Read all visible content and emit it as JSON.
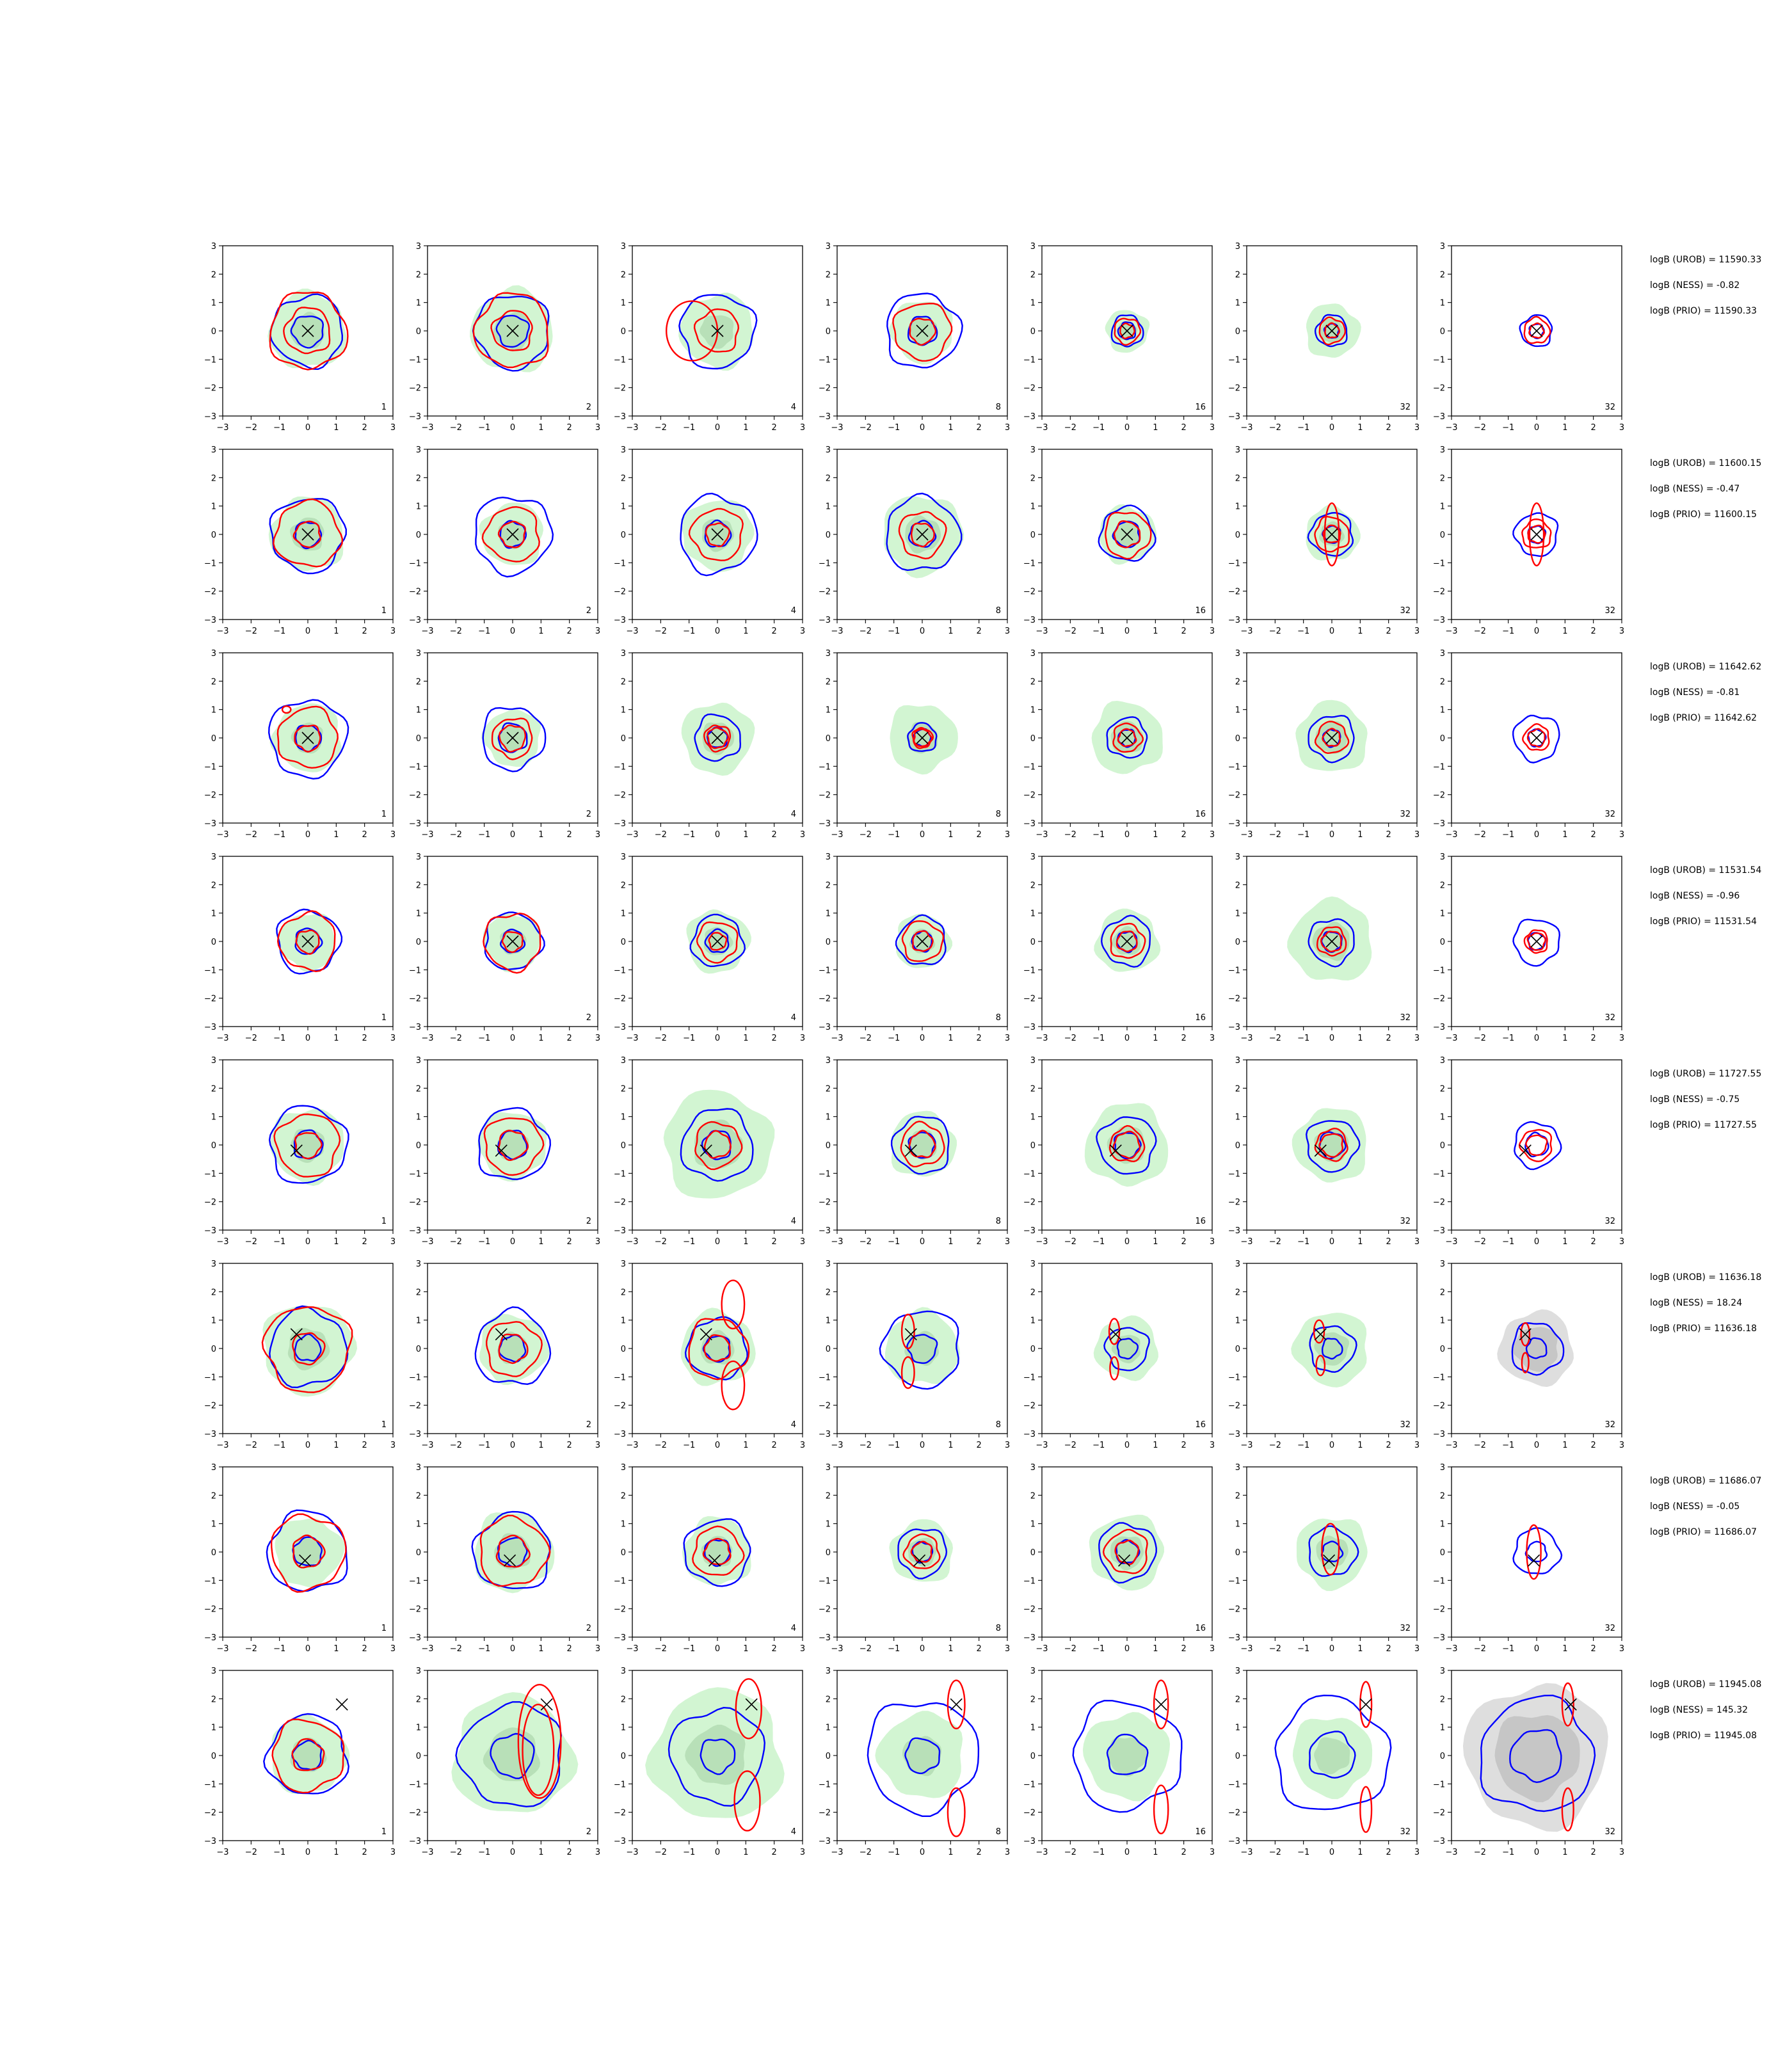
{
  "figure": {
    "colors": {
      "fill": "#d2f5d2",
      "fill_dark": "#b8e0b8",
      "gray": "#dedede",
      "gray_dark": "#c6c6c6",
      "blue": "#0000ff",
      "red": "#ff0000",
      "axis": "#000000"
    }
  },
  "chart_data": {
    "type": "contour-grid",
    "rows": 8,
    "cols": 7,
    "xlim": [
      -3,
      3
    ],
    "ylim": [
      -3,
      3
    ],
    "ticks": [
      "−3",
      "−2",
      "−1",
      "0",
      "1",
      "2",
      "3"
    ],
    "tick_values": [
      -3,
      -2,
      -1,
      0,
      1,
      2,
      3
    ],
    "column_counts": [
      "1",
      "2",
      "4",
      "8",
      "16",
      "32",
      "32"
    ],
    "panels_per_row": [
      {
        "marker": [
          0,
          0
        ],
        "annotations": [
          "logB (UROB) = 11590.33",
          "logB (NESS) = -0.82",
          "logB (PRIO) = 11590.33"
        ],
        "cells": [
          {
            "fill": 1.35,
            "blue": [
              1.25,
              0.55
            ],
            "red": [
              1.35,
              0.8
            ],
            "redExtra": []
          },
          {
            "fill": 1.45,
            "blue": [
              1.3,
              0.55
            ],
            "red": [
              1.3,
              0.7
            ],
            "redExtra": []
          },
          {
            "fill": 1.3,
            "blue": [
              1.3
            ],
            "red": [
              0.75
            ],
            "redExtra": [
              {
                "cx": -0.9,
                "cy": 0,
                "rx": 0.9,
                "ry": 1.05
              }
            ]
          },
          {
            "fill": 1.1,
            "blue": [
              1.3,
              0.5
            ],
            "red": [
              1.0,
              0.45
            ],
            "redExtra": []
          },
          {
            "fill": 0.75,
            "blue": [
              0.55,
              0.3
            ],
            "red": [
              0.45,
              0.25
            ],
            "redExtra": []
          },
          {
            "fill": 0.95,
            "blue": [
              0.55,
              0.25
            ],
            "red": [
              0.45,
              0.25
            ],
            "redExtra": []
          },
          {
            "fill": 0.0,
            "blue": [
              0.55,
              0.25
            ],
            "red": [
              0.45,
              0.25
            ],
            "redExtra": []
          }
        ]
      },
      {
        "marker": [
          0,
          0
        ],
        "annotations": [
          "logB (UROB) = 11600.15",
          "logB (NESS) = -0.47",
          "logB (PRIO) = 11600.15"
        ],
        "cells": [
          {
            "fill": 1.3,
            "blue": [
              1.3,
              0.45
            ],
            "red": [
              1.15,
              0.45
            ],
            "redExtra": []
          },
          {
            "fill": 1.1,
            "blue": [
              1.35,
              0.45
            ],
            "red": [
              0.95,
              0.45
            ],
            "redExtra": []
          },
          {
            "fill": 1.25,
            "blue": [
              1.35,
              0.45
            ],
            "red": [
              0.9,
              0.4
            ],
            "redExtra": []
          },
          {
            "fill": 1.4,
            "blue": [
              1.3,
              0.45
            ],
            "red": [
              0.8,
              0.4
            ],
            "redExtra": []
          },
          {
            "fill": 1.0,
            "blue": [
              0.95,
              0.45
            ],
            "red": [
              0.8,
              0.45
            ],
            "redExtra": []
          },
          {
            "fill": 0.95,
            "blue": [
              0.75,
              0.3
            ],
            "red": [
              0.6,
              0.3
            ],
            "redExtra": [
              {
                "cx": 0,
                "cy": 0,
                "rx": 0.25,
                "ry": 1.1
              }
            ]
          },
          {
            "fill": 0.0,
            "blue": [
              0.75,
              0.3
            ],
            "red": [
              0.5,
              0.3
            ],
            "redExtra": [
              {
                "cx": 0,
                "cy": 0,
                "rx": 0.25,
                "ry": 1.1
              }
            ]
          }
        ]
      },
      {
        "marker": [
          0,
          0
        ],
        "annotations": [
          "logB (UROB) = 11642.62",
          "logB (NESS) = -0.81",
          "logB (PRIO) = 11642.62"
        ],
        "cells": [
          {
            "fill": 1.2,
            "blue": [
              1.35,
              0.45
            ],
            "red": [
              1.05,
              0.45
            ],
            "redExtra": [
              {
                "cx": -0.75,
                "cy": 1.0,
                "rx": 0.15,
                "ry": 0.12
              }
            ]
          },
          {
            "fill": 1.0,
            "blue": [
              1.1,
              0.5
            ],
            "red": [
              0.7,
              0.45
            ],
            "redExtra": []
          },
          {
            "fill": 1.25,
            "blue": [
              0.8,
              0.35
            ],
            "red": [
              0.45,
              0.35
            ],
            "redExtra": []
          },
          {
            "fill": 1.2,
            "blue": [
              0.5,
              0.3
            ],
            "red": [
              0.35,
              0.3
            ],
            "redExtra": []
          },
          {
            "fill": 1.25,
            "blue": [
              0.7,
              0.3
            ],
            "red": [
              0.5,
              0.3
            ],
            "redExtra": []
          },
          {
            "fill": 1.25,
            "blue": [
              0.8,
              0.3
            ],
            "red": [
              0.55,
              0.3
            ],
            "redExtra": []
          },
          {
            "fill": 0.0,
            "blue": [
              0.8,
              0.3
            ],
            "red": [
              0.45,
              0.3
            ],
            "redExtra": []
          }
        ]
      },
      {
        "marker": [
          0,
          0
        ],
        "annotations": [
          "logB (UROB) = 11531.54",
          "logB (NESS) = -0.96",
          "logB (PRIO) = 11531.54"
        ],
        "cells": [
          {
            "fill": 1.0,
            "blue": [
              1.1,
              0.45
            ],
            "red": [
              1.0,
              0.4
            ],
            "redExtra": []
          },
          {
            "fill": 1.0,
            "blue": [
              1.0,
              0.4
            ],
            "red": [
              1.0,
              0.35
            ],
            "redExtra": []
          },
          {
            "fill": 1.1,
            "blue": [
              0.9,
              0.4
            ],
            "red": [
              0.7,
              0.3
            ],
            "redExtra": []
          },
          {
            "fill": 0.95,
            "blue": [
              0.85,
              0.35
            ],
            "red": [
              0.7,
              0.35
            ],
            "redExtra": []
          },
          {
            "fill": 1.1,
            "blue": [
              0.85,
              0.35
            ],
            "red": [
              0.6,
              0.35
            ],
            "redExtra": []
          },
          {
            "fill": 1.45,
            "blue": [
              0.8,
              0.35
            ],
            "red": [
              0.5,
              0.35
            ],
            "redExtra": []
          },
          {
            "fill": 0.0,
            "blue": [
              0.8,
              0.3
            ],
            "red": [
              0.4,
              0.3
            ],
            "redExtra": []
          }
        ]
      },
      {
        "marker": [
          -0.4,
          -0.2
        ],
        "annotations": [
          "logB (UROB) = 11727.55",
          "logB (NESS) = -0.75",
          "logB (PRIO) = 11727.55"
        ],
        "cells": [
          {
            "fill": 1.3,
            "blue": [
              1.35,
              0.5
            ],
            "red": [
              1.1,
              0.45
            ],
            "redExtra": []
          },
          {
            "fill": 1.2,
            "blue": [
              1.25,
              0.5
            ],
            "red": [
              1.0,
              0.5
            ],
            "redExtra": []
          },
          {
            "fill": 1.9,
            "blue": [
              1.25,
              0.5
            ],
            "red": [
              0.8,
              0.45
            ],
            "redExtra": []
          },
          {
            "fill": 1.15,
            "blue": [
              1.0,
              0.45
            ],
            "red": [
              0.75,
              0.45
            ],
            "redExtra": []
          },
          {
            "fill": 1.45,
            "blue": [
              1.0,
              0.45
            ],
            "red": [
              0.6,
              0.45
            ],
            "redExtra": []
          },
          {
            "fill": 1.3,
            "blue": [
              0.9,
              0.45
            ],
            "red": [
              0.55,
              0.4
            ],
            "redExtra": []
          },
          {
            "fill": 0.0,
            "blue": [
              0.8,
              0.4
            ],
            "red": [
              0.55,
              0.35
            ],
            "redExtra": []
          }
        ]
      },
      {
        "marker": [
          -0.4,
          0.5
        ],
        "annotations": [
          "logB (UROB) = 11636.18",
          "logB (NESS) = 18.24",
          "logB (PRIO) = 11636.18"
        ],
        "cells": [
          {
            "fill": 1.6,
            "blue": [
              1.35,
              0.45
            ],
            "red": [
              1.5,
              0.55
            ],
            "redExtra": []
          },
          {
            "fill": 1.2,
            "blue": [
              1.3,
              0.45
            ],
            "red": [
              0.95,
              0.5
            ],
            "redExtra": []
          },
          {
            "fill": 1.3,
            "blue": [
              1.05,
              0.45
            ],
            "red": [
              1.05,
              0.45
            ],
            "redExtra": [
              {
                "cx": 0.55,
                "cy": 1.55,
                "rx": 0.4,
                "ry": 0.85
              },
              {
                "cx": 0.55,
                "cy": -1.3,
                "rx": 0.4,
                "ry": 0.85
              }
            ]
          },
          {
            "fill": 1.3,
            "blue": [
              1.35,
              0.5
            ],
            "red": [],
            "redExtra": [
              {
                "cx": -0.5,
                "cy": 0.6,
                "rx": 0.22,
                "ry": 0.6
              },
              {
                "cx": -0.5,
                "cy": -0.85,
                "rx": 0.22,
                "ry": 0.55
              }
            ]
          },
          {
            "fill": 1.1,
            "blue": [
              0.75,
              0.35
            ],
            "red": [],
            "redExtra": [
              {
                "cx": -0.45,
                "cy": 0.6,
                "rx": 0.18,
                "ry": 0.45
              },
              {
                "cx": -0.45,
                "cy": -0.7,
                "rx": 0.15,
                "ry": 0.4
              }
            ]
          },
          {
            "fill": 1.3,
            "blue": [
              0.8,
              0.35
            ],
            "red": [],
            "redExtra": [
              {
                "cx": -0.45,
                "cy": 0.6,
                "rx": 0.18,
                "ry": 0.4
              },
              {
                "cx": -0.4,
                "cy": -0.6,
                "rx": 0.15,
                "ry": 0.35
              }
            ]
          },
          {
            "fill": 0.0,
            "gray": 1.3,
            "blue": [
              0.9,
              0.35
            ],
            "red": [],
            "redExtra": [
              {
                "cx": -0.4,
                "cy": 0.5,
                "rx": 0.15,
                "ry": 0.4
              },
              {
                "cx": -0.4,
                "cy": -0.5,
                "rx": 0.12,
                "ry": 0.35
              }
            ]
          }
        ]
      },
      {
        "marker": [
          -0.1,
          -0.3
        ],
        "annotations": [
          "logB (UROB) = 11686.07",
          "logB (NESS) = -0.05",
          "logB (PRIO) = 11686.07"
        ],
        "cells": [
          {
            "fill": 1.2,
            "blue": [
              1.4,
              0.5
            ],
            "red": [
              1.3,
              0.55
            ],
            "redExtra": []
          },
          {
            "fill": 1.4,
            "blue": [
              1.35,
              0.5
            ],
            "red": [
              1.2,
              0.55
            ],
            "redExtra": []
          },
          {
            "fill": 1.2,
            "blue": [
              1.15,
              0.45
            ],
            "red": [
              0.85,
              0.45
            ],
            "redExtra": []
          },
          {
            "fill": 1.1,
            "blue": [
              0.85,
              0.35
            ],
            "red": [
              0.6,
              0.35
            ],
            "redExtra": []
          },
          {
            "fill": 1.3,
            "blue": [
              1.0,
              0.4
            ],
            "red": [
              0.75,
              0.4
            ],
            "redExtra": []
          },
          {
            "fill": 1.25,
            "blue": [
              0.85,
              0.35
            ],
            "red": [],
            "redExtra": [
              {
                "cx": -0.05,
                "cy": 0.1,
                "rx": 0.3,
                "ry": 0.9
              }
            ]
          },
          {
            "fill": 0.0,
            "blue": [
              0.8,
              0.35
            ],
            "red": [],
            "redExtra": [
              {
                "cx": -0.1,
                "cy": 0,
                "rx": 0.25,
                "ry": 0.95
              }
            ]
          }
        ]
      },
      {
        "marker": [
          1.2,
          1.8
        ],
        "annotations": [
          "logB (UROB) = 11945.08",
          "logB (NESS) = 145.32",
          "logB (PRIO) = 11945.08"
        ],
        "cells": [
          {
            "fill": 1.35,
            "blue": [
              1.4,
              0.5
            ],
            "red": [
              1.25,
              0.55
            ],
            "redExtra": []
          },
          {
            "fill": 2.1,
            "blue": [
              1.8,
              0.75
            ],
            "red": [],
            "redExtra": [
              {
                "cx": 0.95,
                "cy": 0.5,
                "rx": 0.75,
                "ry": 2.0
              },
              {
                "cx": 0.9,
                "cy": 0.2,
                "rx": 0.55,
                "ry": 1.6
              }
            ]
          },
          {
            "fill": 2.3,
            "blue": [
              1.65,
              0.6
            ],
            "red": [],
            "redExtra": [
              {
                "cx": 1.1,
                "cy": 1.65,
                "rx": 0.45,
                "ry": 1.05
              },
              {
                "cx": 1.05,
                "cy": -1.6,
                "rx": 0.45,
                "ry": 1.05
              }
            ]
          },
          {
            "fill": 1.5,
            "blue": [
              1.95,
              0.6
            ],
            "red": [],
            "redExtra": [
              {
                "cx": 1.2,
                "cy": 1.8,
                "rx": 0.3,
                "ry": 0.85
              },
              {
                "cx": 1.2,
                "cy": -2.0,
                "rx": 0.3,
                "ry": 0.85
              }
            ]
          },
          {
            "fill": 1.5,
            "blue": [
              1.9,
              0.7
            ],
            "red": [],
            "redExtra": [
              {
                "cx": 1.2,
                "cy": 1.8,
                "rx": 0.25,
                "ry": 0.85
              },
              {
                "cx": 1.2,
                "cy": -1.9,
                "rx": 0.25,
                "ry": 0.85
              }
            ]
          },
          {
            "fill": 1.4,
            "blue": [
              2.0,
              0.8
            ],
            "red": [],
            "redExtra": [
              {
                "cx": 1.2,
                "cy": 1.8,
                "rx": 0.2,
                "ry": 0.8
              },
              {
                "cx": 1.2,
                "cy": -1.9,
                "rx": 0.2,
                "ry": 0.8
              }
            ]
          },
          {
            "fill": 0.0,
            "gray": 2.5,
            "blue": [
              2.0,
              0.9
            ],
            "red": [],
            "redExtra": [
              {
                "cx": 1.1,
                "cy": 1.8,
                "rx": 0.2,
                "ry": 0.75
              },
              {
                "cx": 1.1,
                "cy": -1.9,
                "rx": 0.2,
                "ry": 0.75
              }
            ]
          }
        ]
      }
    ]
  }
}
